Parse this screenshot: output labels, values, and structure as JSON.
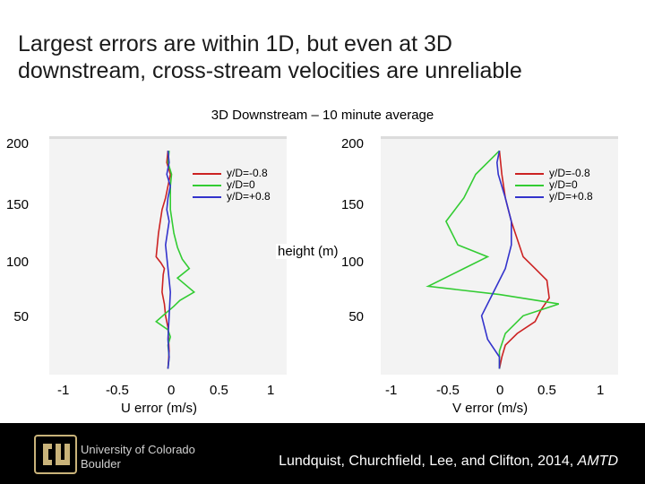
{
  "title_lines": [
    "Largest errors are within 1D, but even at 3D",
    "downstream, cross-stream velocities are unreliable"
  ],
  "subtitle": "3D Downstream – 10 minute average",
  "y_tick_labels": [
    "200",
    "150",
    "100",
    "50"
  ],
  "height_label": "height (m)",
  "legend": [
    {
      "label": "y/D=-0.8",
      "color": "#cc2222"
    },
    {
      "label": "y/D=0",
      "color": "#33cc33"
    },
    {
      "label": "y/D=+0.8",
      "color": "#3333cc"
    }
  ],
  "x_tick_labels": [
    "-1",
    "-0.5",
    "0",
    "0.5",
    "1"
  ],
  "footer": {
    "university_line1": "University of Colorado",
    "university_line2": "Boulder",
    "citation_text": "Lundquist, Churchfield, Lee, and Clifton, 2014, ",
    "citation_journal": "AMTD",
    "logo_color": "#c9b37a"
  },
  "chart_data": [
    {
      "type": "line",
      "title": "3D Downstream – 10 minute average",
      "xlabel": "U error (m/s)",
      "ylabel": "height (m)",
      "xlim": [
        -1,
        1
      ],
      "ylim": [
        10,
        210
      ],
      "series": [
        {
          "name": "y/D=-0.8",
          "color": "#cc2222",
          "x": [
            0.0,
            -0.01,
            0.02,
            0.0,
            -0.02,
            -0.05,
            -0.08,
            -0.1,
            -0.06,
            -0.03,
            -0.04,
            -0.05,
            -0.03,
            -0.02,
            0.0,
            0.01,
            0.0
          ],
          "y": [
            200,
            190,
            180,
            170,
            160,
            150,
            130,
            110,
            105,
            100,
            95,
            80,
            70,
            60,
            50,
            30,
            15
          ]
        },
        {
          "name": "y/D=0",
          "color": "#33cc33",
          "x": [
            0.01,
            0.0,
            0.03,
            0.02,
            0.02,
            0.05,
            0.08,
            0.12,
            0.18,
            0.08,
            0.22,
            0.1,
            0.05,
            -0.02,
            -0.1,
            0.0,
            0.02,
            0.0,
            0.01,
            0.0
          ],
          "y": [
            200,
            190,
            180,
            170,
            150,
            130,
            118,
            108,
            100,
            92,
            80,
            73,
            68,
            62,
            55,
            48,
            42,
            35,
            25,
            15
          ]
        },
        {
          "name": "y/D=+0.8",
          "color": "#3333cc",
          "x": [
            0.0,
            0.01,
            -0.01,
            0.02,
            0.0,
            -0.01,
            0.01,
            -0.02,
            0.0,
            0.02,
            0.01,
            0.0,
            0.01,
            0.0
          ],
          "y": [
            200,
            190,
            180,
            170,
            160,
            150,
            140,
            120,
            100,
            80,
            60,
            40,
            25,
            15
          ]
        }
      ]
    },
    {
      "type": "line",
      "title": "3D Downstream – 10 minute average",
      "xlabel": "V error (m/s)",
      "ylabel": "height (m)",
      "xlim": [
        -1,
        1
      ],
      "ylim": [
        10,
        210
      ],
      "series": [
        {
          "name": "y/D=-0.8",
          "color": "#cc2222",
          "x": [
            0.0,
            0.02,
            0.05,
            0.1,
            0.15,
            0.2,
            0.3,
            0.4,
            0.42,
            0.35,
            0.3,
            0.15,
            0.05,
            0.02,
            0.0
          ],
          "y": [
            200,
            180,
            160,
            140,
            125,
            110,
            100,
            90,
            75,
            65,
            55,
            45,
            35,
            25,
            15
          ]
        },
        {
          "name": "y/D=0",
          "color": "#33cc33",
          "x": [
            0.0,
            -0.1,
            -0.2,
            -0.3,
            -0.45,
            -0.35,
            -0.1,
            -0.3,
            -0.6,
            0.0,
            0.5,
            0.2,
            0.05,
            0.0,
            0.0
          ],
          "y": [
            200,
            190,
            180,
            160,
            140,
            120,
            110,
            100,
            85,
            78,
            70,
            60,
            45,
            30,
            15
          ]
        },
        {
          "name": "y/D=+0.8",
          "color": "#3333cc",
          "x": [
            0.0,
            -0.02,
            -0.01,
            0.05,
            0.1,
            0.1,
            0.05,
            -0.05,
            -0.15,
            -0.1,
            0.0,
            0.0
          ],
          "y": [
            200,
            190,
            180,
            160,
            140,
            120,
            100,
            80,
            60,
            40,
            25,
            15
          ]
        }
      ]
    }
  ]
}
